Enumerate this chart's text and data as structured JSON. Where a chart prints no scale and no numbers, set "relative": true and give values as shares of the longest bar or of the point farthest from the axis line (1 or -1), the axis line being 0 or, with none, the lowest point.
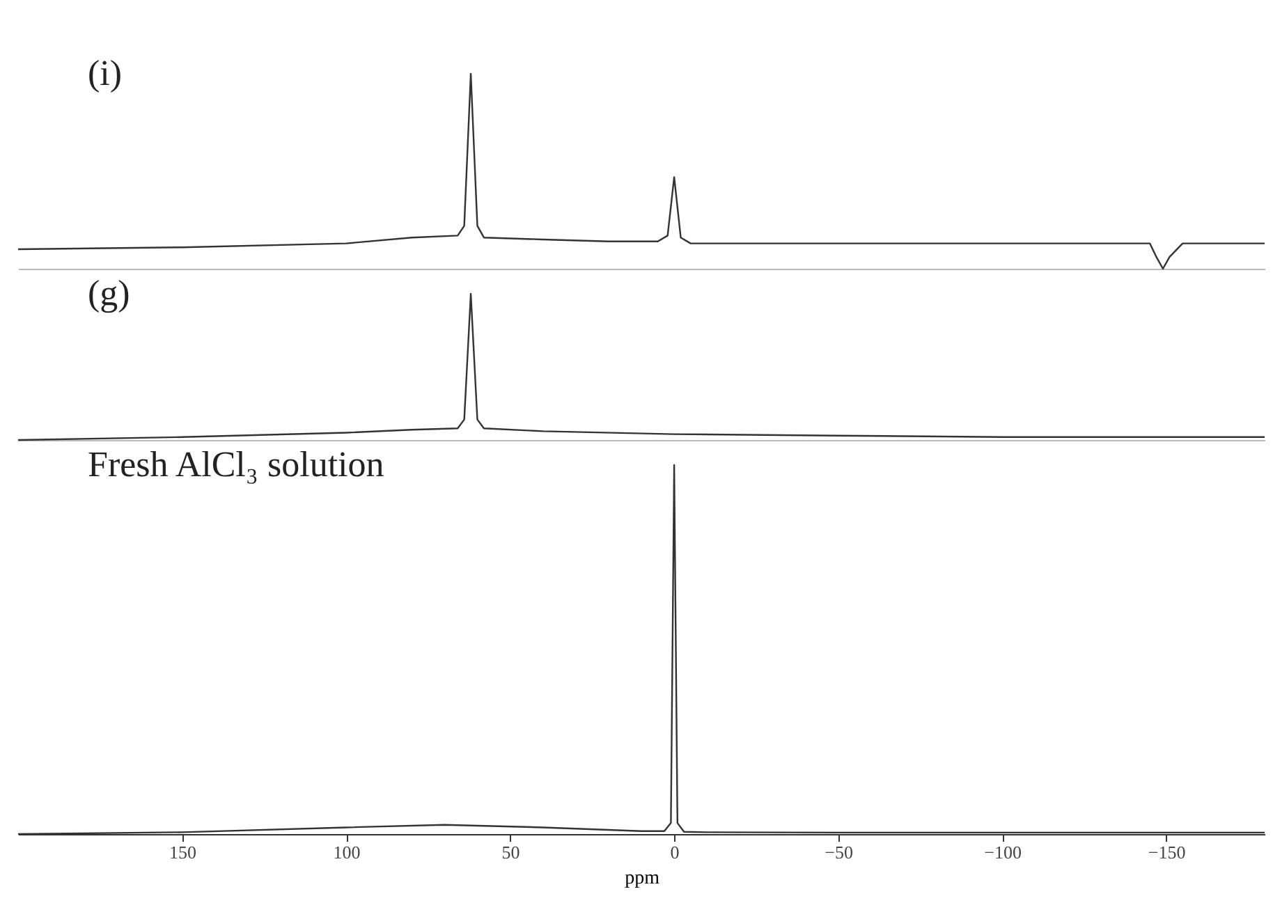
{
  "chart_data": [
    {
      "type": "line",
      "relative": true,
      "annotations": [
        "(i)"
      ],
      "xlim": [
        200,
        -180
      ],
      "tick_labels": false,
      "series": [
        {
          "color": "#333333",
          "x": [
            200,
            150,
            100,
            80,
            66,
            64,
            62,
            60,
            58,
            40,
            20,
            5,
            2,
            0,
            -2,
            -5,
            -50,
            -100,
            -145,
            -147,
            -149,
            -151,
            -155,
            -180
          ],
          "values": [
            0.1,
            0.11,
            0.13,
            0.16,
            0.17,
            0.22,
            1,
            0.22,
            0.16,
            0.15,
            0.14,
            0.14,
            0.17,
            0.47,
            0.16,
            0.13,
            0.13,
            0.13,
            0.13,
            0.06,
            0,
            0.06,
            0.13,
            0.13
          ]
        }
      ]
    },
    {
      "type": "line",
      "relative": true,
      "annotations": [
        "(g)"
      ],
      "xlim": [
        200,
        -180
      ],
      "tick_labels": false,
      "series": [
        {
          "color": "#333333",
          "x": [
            200,
            150,
            100,
            80,
            66,
            64,
            62,
            60,
            58,
            40,
            0,
            -50,
            -100,
            -180
          ],
          "values": [
            0,
            0.02,
            0.05,
            0.07,
            0.08,
            0.14,
            1,
            0.14,
            0.08,
            0.06,
            0.04,
            0.03,
            0.02,
            0.02
          ]
        }
      ]
    },
    {
      "type": "line",
      "relative": true,
      "annotations": [
        "Fresh AlCl₃ solution"
      ],
      "xlabel": "ppm",
      "xlim": [
        200,
        -180
      ],
      "xticks": [
        150,
        100,
        50,
        0,
        -50,
        -100,
        -150
      ],
      "series": [
        {
          "color": "#333333",
          "x": [
            200,
            150,
            100,
            70,
            40,
            10,
            3,
            1,
            0,
            -1,
            -3,
            -10,
            -50,
            -100,
            -180
          ],
          "values": [
            0,
            0.005,
            0.018,
            0.025,
            0.018,
            0.008,
            0.008,
            0.03,
            1,
            0.03,
            0.006,
            0.005,
            0.004,
            0.004,
            0.004
          ]
        }
      ]
    }
  ]
}
